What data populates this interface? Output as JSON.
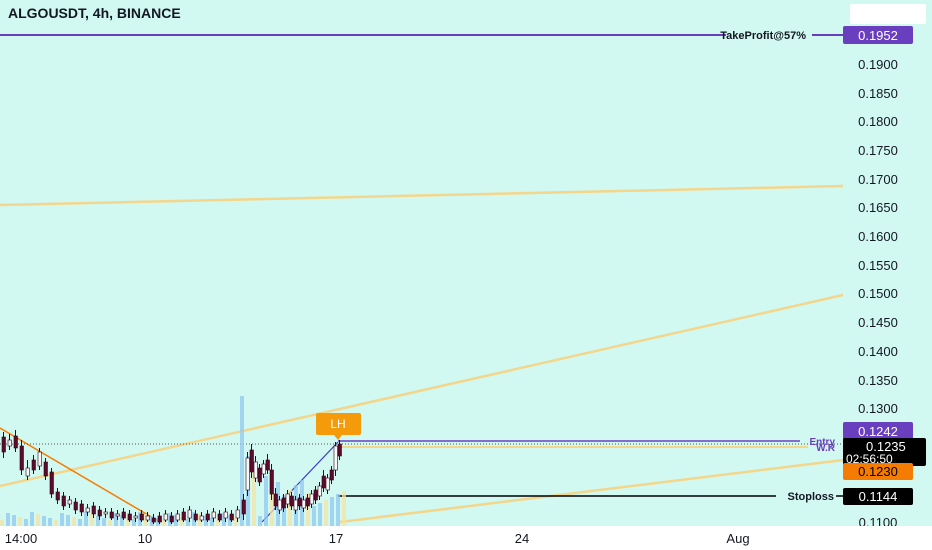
{
  "header": {
    "title": "ALGOUSDT, 4h, BINANCE"
  },
  "price_axis": {
    "ticks": [
      "0.1900",
      "0.1850",
      "0.1800",
      "0.1750",
      "0.1700",
      "0.1650",
      "0.1600",
      "0.1550",
      "0.1500",
      "0.1450",
      "0.1400",
      "0.1350",
      "0.1300",
      "0.1100"
    ]
  },
  "time_axis": {
    "labels": [
      {
        "t": "14:00",
        "x": 21
      },
      {
        "t": "10",
        "x": 145
      },
      {
        "t": "17",
        "x": 336
      },
      {
        "t": "24",
        "x": 522
      },
      {
        "t": "Aug",
        "x": 738
      }
    ]
  },
  "levels": {
    "take_profit": {
      "label": "TakeProfit@57%",
      "price": "0.1952",
      "color": "#6a3fbf"
    },
    "entry": {
      "label": "Entry",
      "price": "0.1242",
      "color": "#6a3fbf"
    },
    "wr": {
      "label": "W.R"
    },
    "current": {
      "price": "0.1235",
      "countdown": "02:56:50"
    },
    "orange": {
      "price": "0.1230",
      "color": "#f57c00"
    },
    "stoploss": {
      "label": "Stoploss",
      "price": "0.1144"
    }
  },
  "annotation": {
    "text": "LH",
    "color": "#f59a0a"
  },
  "colors": {
    "background": "#d2f8f2",
    "trendline": "#f3d68a",
    "bull": "#f8f8f8",
    "bear": "#5d0b2a",
    "volume": "#90c8f0"
  }
}
